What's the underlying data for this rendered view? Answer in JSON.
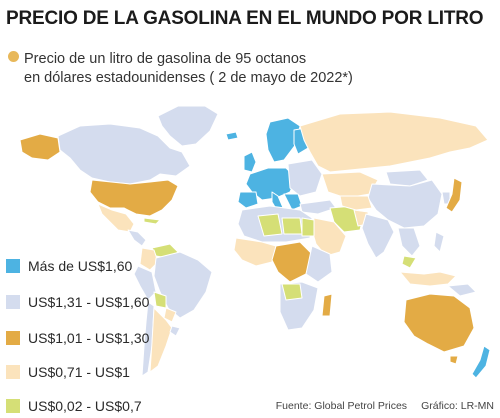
{
  "title": "PRECIO DE LA GASOLINA EN EL MUNDO POR LITRO",
  "subtitle_line1": "Precio de un litro de gasolina de 95 octanos",
  "subtitle_line2": "en dólares estadounidenses ( 2 de mayo de 2022*)",
  "colors": {
    "ocean": "#ffffff",
    "cat1": "#4db3e2",
    "cat2": "#d4dcee",
    "cat3": "#e3ab45",
    "cat4": "#fbe3bc",
    "cat5": "#d5df76",
    "border": "#ffffff",
    "bullet": "#e8b85a"
  },
  "legend": [
    {
      "label": "Más de US$1,60",
      "color": "#4db3e2"
    },
    {
      "label": "US$1,31 - US$1,60",
      "color": "#d4dcee"
    },
    {
      "label": "US$1,01 - US$1,30",
      "color": "#e3ab45"
    },
    {
      "label": "US$0,71 - US$1",
      "color": "#fbe3bc"
    },
    {
      "label": "US$0,02 - US$0,7",
      "color": "#d5df76"
    }
  ],
  "footer": {
    "source": "Fuente: Global Petrol Prices",
    "credit": "Gráfico: LR-MN"
  }
}
